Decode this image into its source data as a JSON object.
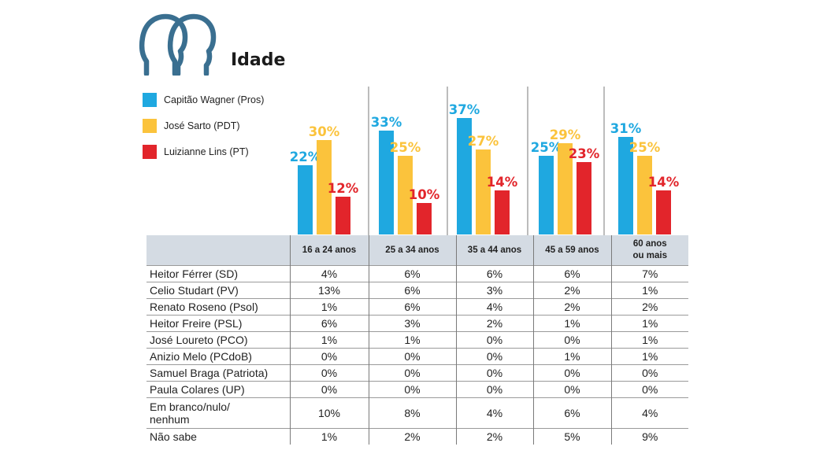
{
  "page": {
    "title": "Idade"
  },
  "colors": {
    "icon": "#3a6f90",
    "header_bg": "#d4dbe3",
    "divider": "#7a7a7a"
  },
  "legend": [
    {
      "label": "Capitão Wagner (Pros)",
      "color": "#1fa8e0"
    },
    {
      "label": "José Sarto (PDT)",
      "color": "#fbc33c"
    },
    {
      "label": "Luizianne Lins (PT)",
      "color": "#e2252b"
    }
  ],
  "chart_data": {
    "type": "bar",
    "categories": [
      "16 a 24 anos",
      "25 a 34 anos",
      "35 a 44 anos",
      "45 a 59 anos",
      "60 anos ou mais"
    ],
    "series": [
      {
        "name": "Capitão Wagner (Pros)",
        "color": "#1fa8e0",
        "values": [
          22,
          33,
          37,
          25,
          31
        ]
      },
      {
        "name": "José Sarto (PDT)",
        "color": "#fbc33c",
        "values": [
          30,
          25,
          27,
          29,
          25
        ]
      },
      {
        "name": "Luizianne Lins (PT)",
        "color": "#e2252b",
        "values": [
          12,
          10,
          14,
          23,
          14
        ]
      }
    ],
    "value_suffix": "%",
    "ylim": [
      0,
      40
    ],
    "legend_position": "top-left",
    "grid": false
  },
  "table": {
    "headers": [
      "",
      "16 a 24 anos",
      "25 a 34 anos",
      "35 a 44 anos",
      "45 a 59 anos",
      [
        "60 anos",
        "ou mais"
      ]
    ],
    "rows": [
      {
        "name": "Heitor Férrer (SD)",
        "values": [
          "4%",
          "6%",
          "6%",
          "6%",
          "7%"
        ]
      },
      {
        "name": "Celio Studart (PV)",
        "values": [
          "13%",
          "6%",
          "3%",
          "2%",
          "1%"
        ]
      },
      {
        "name": "Renato Roseno (Psol)",
        "values": [
          "1%",
          "6%",
          "4%",
          "2%",
          "2%"
        ]
      },
      {
        "name": "Heitor Freire (PSL)",
        "values": [
          "6%",
          "3%",
          "2%",
          "1%",
          "1%"
        ]
      },
      {
        "name": "José Loureto (PCO)",
        "values": [
          "1%",
          "1%",
          "0%",
          "0%",
          "1%"
        ]
      },
      {
        "name": "Anizio Melo (PCdoB)",
        "values": [
          "0%",
          "0%",
          "0%",
          "1%",
          "1%"
        ]
      },
      {
        "name": "Samuel Braga (Patriota)",
        "values": [
          "0%",
          "0%",
          "0%",
          "0%",
          "0%"
        ]
      },
      {
        "name": "Paula Colares (UP)",
        "values": [
          "0%",
          "0%",
          "0%",
          "0%",
          "0%"
        ]
      },
      {
        "name": [
          "Em branco/nulo/",
          "nenhum"
        ],
        "values": [
          "10%",
          "8%",
          "4%",
          "6%",
          "4%"
        ]
      },
      {
        "name": "Não sabe",
        "values": [
          "1%",
          "2%",
          "2%",
          "5%",
          "9%"
        ]
      }
    ]
  }
}
